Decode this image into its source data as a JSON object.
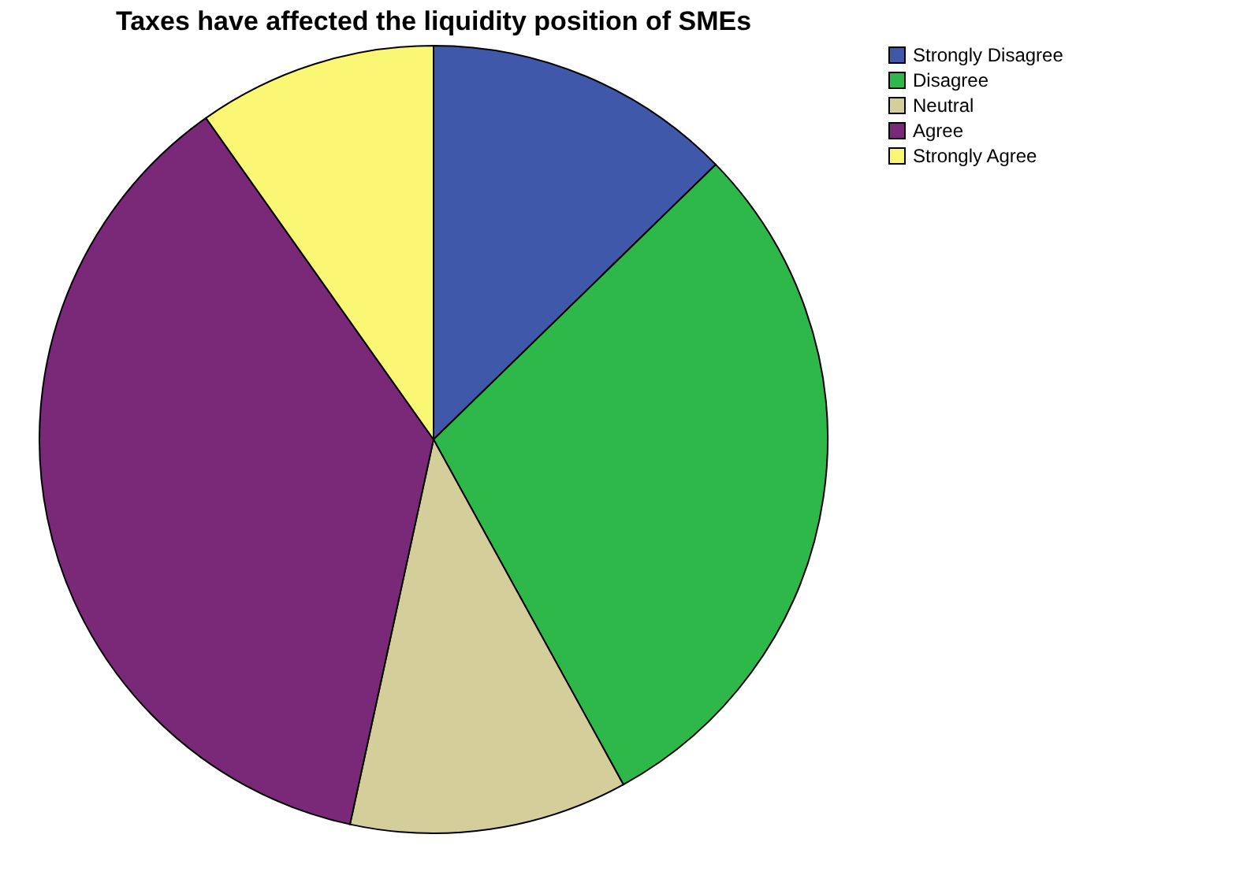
{
  "chart_data": {
    "type": "pie",
    "title": "Taxes have affected the liquidity position of SMEs",
    "categories": [
      "Strongly Disagree",
      "Disagree",
      "Neutral",
      "Agree",
      "Strongly Agree"
    ],
    "values": [
      12.7,
      29.3,
      11.4,
      36.8,
      9.8
    ],
    "colors": [
      "#3f58aa",
      "#2fb84a",
      "#d4cf9a",
      "#7a2878",
      "#f9f774"
    ],
    "legend": "top right"
  }
}
